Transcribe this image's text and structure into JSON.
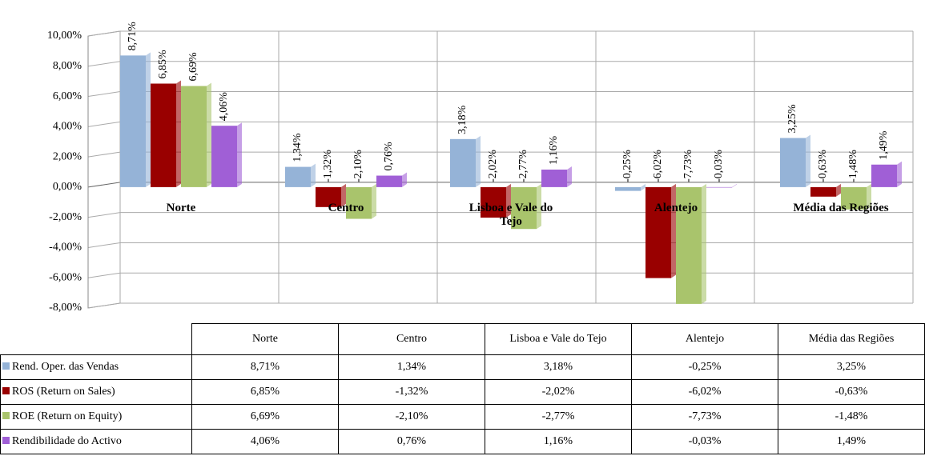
{
  "chart_data": {
    "type": "bar",
    "categories": [
      "Norte",
      "Centro",
      "Lisboa e Vale do Tejo",
      "Alentejo",
      "Média das Regiões"
    ],
    "series": [
      {
        "name": "Rend. Oper. das Vendas",
        "color": "#95b3d7",
        "values": [
          8.71,
          1.34,
          3.18,
          -0.25,
          3.25
        ],
        "value_labels": [
          "8,71%",
          "1,34%",
          "3,18%",
          "-0,25%",
          "3,25%"
        ]
      },
      {
        "name": "ROS (Return on Sales)",
        "color": "#990000",
        "values": [
          6.85,
          -1.32,
          -2.02,
          -6.02,
          -0.63
        ],
        "value_labels": [
          "6,85%",
          "-1,32%",
          "-2,02%",
          "-6,02%",
          "-0,63%"
        ]
      },
      {
        "name": "ROE (Return on Equity)",
        "color": "#a9c46c",
        "values": [
          6.69,
          -2.1,
          -2.77,
          -7.73,
          -1.48
        ],
        "value_labels": [
          "6,69%",
          "-2,10%",
          "-2,77%",
          "-7,73%",
          "-1,48%"
        ]
      },
      {
        "name": "Rendibilidade do Activo",
        "color": "#a05fd6",
        "values": [
          4.06,
          0.76,
          1.16,
          -0.03,
          1.49
        ],
        "value_labels": [
          "4,06%",
          "0,76%",
          "1,16%",
          "-0,03%",
          "1,49%"
        ]
      }
    ],
    "ylim": [
      -8,
      10
    ],
    "yticks": [
      {
        "value": -8,
        "label": "-8,00%"
      },
      {
        "value": -6,
        "label": "-6,00%"
      },
      {
        "value": -4,
        "label": "-4,00%"
      },
      {
        "value": -2,
        "label": "-2,00%"
      },
      {
        "value": 0,
        "label": "0,00%"
      },
      {
        "value": 2,
        "label": "2,00%"
      },
      {
        "value": 4,
        "label": "4,00%"
      },
      {
        "value": 6,
        "label": "6,00%"
      },
      {
        "value": 8,
        "label": "8,00%"
      },
      {
        "value": 10,
        "label": "10,00%"
      }
    ],
    "grid": true
  }
}
